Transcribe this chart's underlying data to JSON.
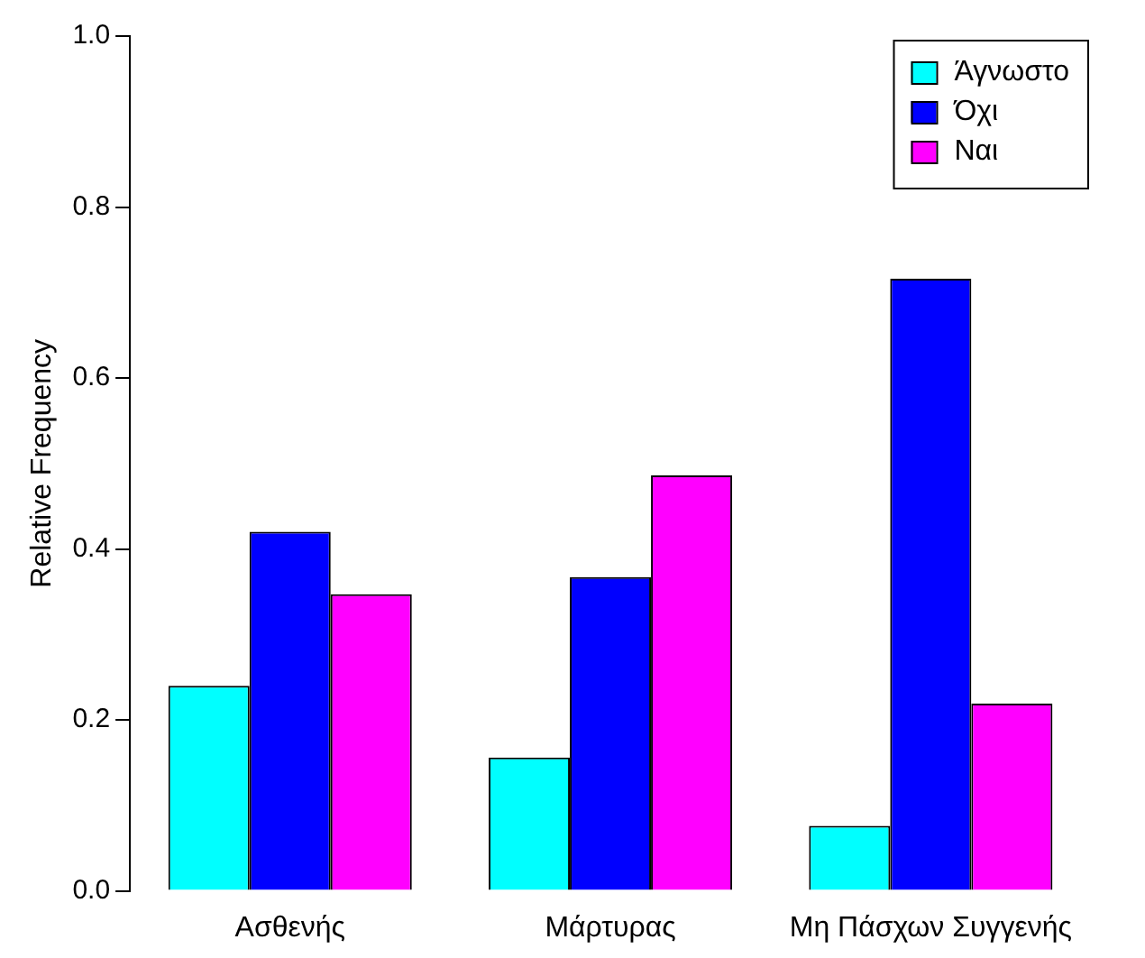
{
  "chart_data": {
    "type": "bar",
    "ylabel": "Relative Frequency",
    "categories": [
      "Ασθενής",
      "Μάρτυρας",
      "Μη Πάσχων Συγγενής"
    ],
    "series": [
      {
        "name": "Άγνωστο",
        "color": "#00ffff",
        "values": [
          0.24,
          0.156,
          0.076
        ]
      },
      {
        "name": "Όχι",
        "color": "#0000ff",
        "values": [
          0.42,
          0.367,
          0.716
        ]
      },
      {
        "name": "Ναι",
        "color": "#ff00ff",
        "values": [
          0.347,
          0.486,
          0.219
        ]
      }
    ],
    "ylim": [
      0,
      1
    ],
    "yticks": [
      {
        "value": 0,
        "label": "0.0"
      },
      {
        "value": 0.2,
        "label": "0.2"
      },
      {
        "value": 0.4,
        "label": "0.4"
      },
      {
        "value": 0.6,
        "label": "0.6"
      },
      {
        "value": 0.8,
        "label": "0.8"
      },
      {
        "value": 1,
        "label": "1.0"
      }
    ],
    "grid": false,
    "legend": "top right"
  }
}
